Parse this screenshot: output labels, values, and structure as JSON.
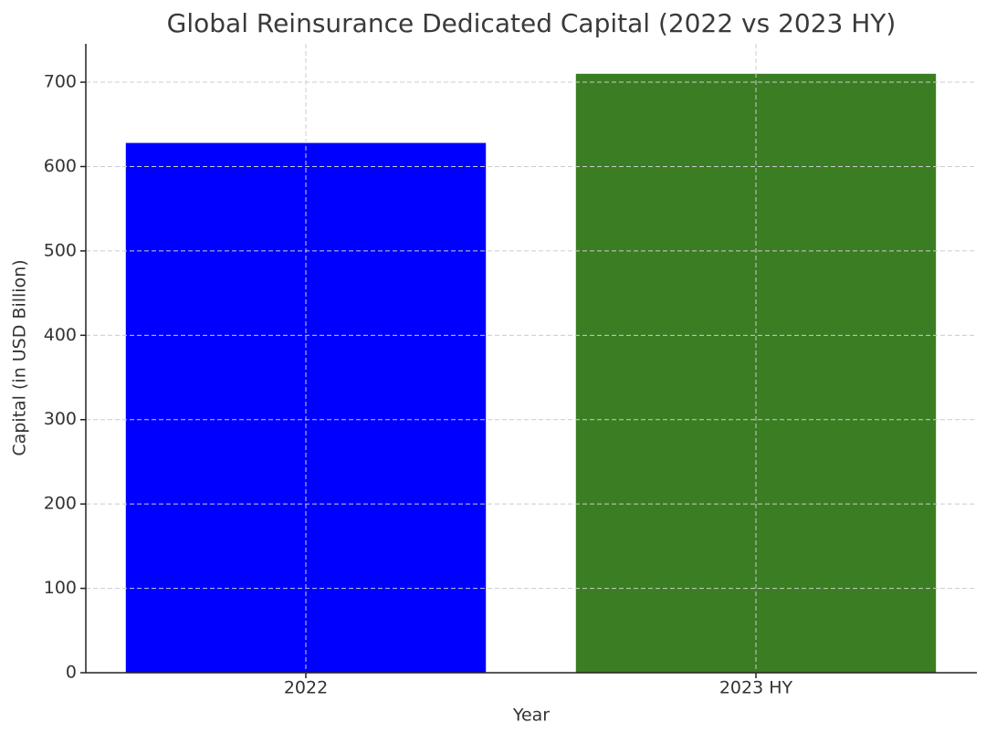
{
  "chart_data": {
    "type": "bar",
    "title": "Global Reinsurance Dedicated Capital (2022 vs 2023 HY)",
    "x_label": "Year",
    "y_label": "Capital (in USD Billion)",
    "categories": [
      "2022",
      "2023 HY"
    ],
    "values": [
      628,
      710
    ],
    "colors": [
      "#0000ff",
      "#3a7d22"
    ],
    "ylim": [
      0,
      745.5
    ],
    "yticks": [
      0,
      100,
      200,
      300,
      400,
      500,
      600,
      700
    ],
    "grid": true
  }
}
